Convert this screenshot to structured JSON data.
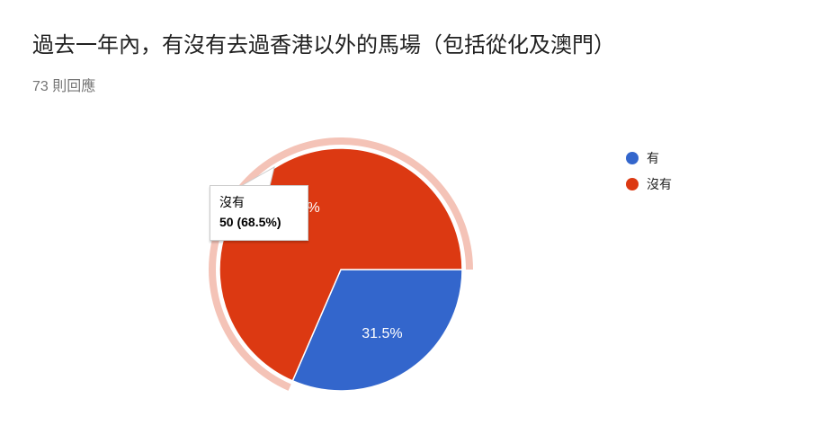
{
  "title": "過去一年內，有沒有去過香港以外的馬場（包括從化及澳門）",
  "subtitle": "73 則回應",
  "chart_data": {
    "type": "pie",
    "categories": [
      "有",
      "沒有"
    ],
    "values": [
      23,
      50
    ],
    "percent_labels": [
      "31.5%",
      "68.5%"
    ],
    "colors": [
      "#3366cc",
      "#dc3912"
    ],
    "legend": "right",
    "highlighted": "沒有"
  },
  "tooltip": {
    "label": "沒有",
    "value": "50 (68.5%)"
  }
}
